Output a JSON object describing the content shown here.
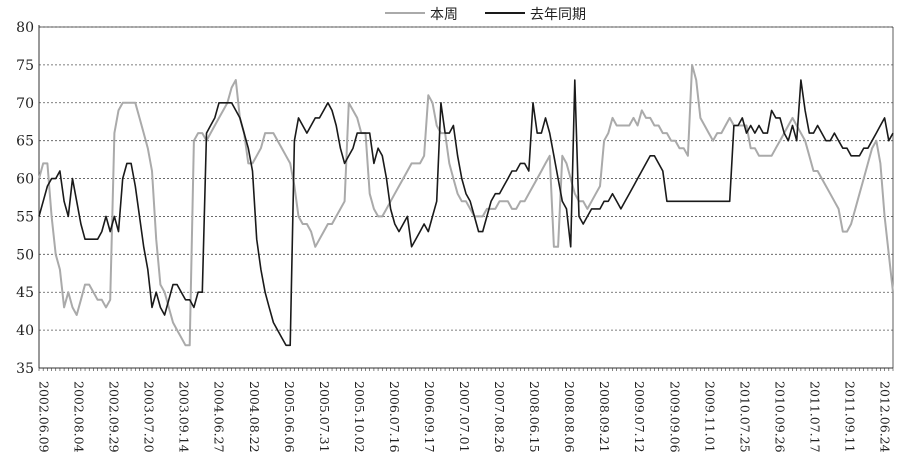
{
  "chart_data": {
    "type": "line",
    "title": "",
    "xlabel": "",
    "ylabel": "",
    "ylim": [
      35,
      80
    ],
    "yticks": [
      35,
      40,
      45,
      50,
      55,
      60,
      65,
      70,
      75,
      80
    ],
    "grid": "horizontal dashed",
    "legend_position": "top-center",
    "x_tick_labels": [
      "2002.06.09",
      "2002.08.04",
      "2002.09.29",
      "2003.07.20",
      "2003.09.14",
      "2004.06.27",
      "2004.08.22",
      "2005.06.06",
      "2005.07.31",
      "2005.10.02",
      "2006.07.16",
      "2006.09.17",
      "2007.07.01",
      "2007.08.26",
      "2008.06.15",
      "2008.08.06",
      "2008.09.21",
      "2009.07.12",
      "2009.09.06",
      "2009.11.01",
      "2010.07.25",
      "2010.09.26",
      "2011.07.17",
      "2011.09.11",
      "2012.06.24"
    ],
    "series": [
      {
        "name": "本周",
        "color": "#aaaaaa",
        "values": [
          60,
          62,
          62,
          55,
          50,
          48,
          43,
          45,
          43,
          42,
          44,
          46,
          46,
          45,
          44,
          44,
          43,
          44,
          66,
          69,
          70,
          70,
          70,
          70,
          68,
          66,
          64,
          61,
          52,
          46,
          45,
          43,
          41,
          40,
          39,
          38,
          38,
          65,
          66,
          66,
          65,
          66,
          67,
          68,
          69,
          70,
          72,
          73,
          68,
          66,
          62,
          62,
          63,
          64,
          66,
          66,
          66,
          65,
          64,
          63,
          62,
          59,
          55,
          54,
          54,
          53,
          51,
          52,
          53,
          54,
          54,
          55,
          56,
          57,
          70,
          69,
          68,
          66,
          66,
          58,
          56,
          55,
          55,
          56,
          57,
          58,
          59,
          60,
          61,
          62,
          62,
          62,
          63,
          71,
          70,
          67,
          66,
          66,
          62,
          60,
          58,
          57,
          57,
          56,
          55,
          55,
          55,
          56,
          56,
          56,
          57,
          57,
          57,
          56,
          56,
          57,
          57,
          58,
          59,
          60,
          61,
          62,
          63,
          51,
          51,
          63,
          62,
          60,
          58,
          57,
          57,
          56,
          57,
          58,
          59,
          65,
          66,
          68,
          67,
          67,
          67,
          67,
          68,
          67,
          69,
          68,
          68,
          67,
          67,
          66,
          66,
          65,
          65,
          64,
          64,
          63,
          75,
          73,
          68,
          67,
          66,
          65,
          66,
          66,
          67,
          68,
          67,
          67,
          67,
          67,
          64,
          64,
          63,
          63,
          63,
          63,
          64,
          65,
          66,
          67,
          68,
          67,
          66,
          65,
          63,
          61,
          61,
          60,
          59,
          58,
          57,
          56,
          53,
          53,
          54,
          56,
          58,
          60,
          62,
          64,
          65,
          62,
          55,
          50,
          45
        ]
      },
      {
        "name": "去年同期",
        "color": "#1a1a1a",
        "values": [
          55,
          57,
          59,
          60,
          60,
          61,
          57,
          55,
          60,
          57,
          54,
          52,
          52,
          52,
          52,
          53,
          55,
          53,
          55,
          53,
          60,
          62,
          62,
          59,
          55,
          51,
          48,
          43,
          45,
          43,
          42,
          44,
          46,
          46,
          45,
          44,
          44,
          43,
          45,
          45,
          66,
          67,
          68,
          70,
          70,
          70,
          70,
          69,
          68,
          66,
          64,
          61,
          52,
          48,
          45,
          43,
          41,
          40,
          39,
          38,
          38,
          65,
          68,
          67,
          66,
          67,
          68,
          68,
          69,
          70,
          69,
          67,
          64,
          62,
          63,
          64,
          66,
          66,
          66,
          66,
          62,
          64,
          63,
          60,
          56,
          54,
          53,
          54,
          55,
          51,
          52,
          53,
          54,
          53,
          55,
          57,
          70,
          66,
          66,
          67,
          63,
          60,
          58,
          57,
          55,
          53,
          53,
          55,
          57,
          58,
          58,
          59,
          60,
          61,
          61,
          62,
          62,
          61,
          70,
          66,
          66,
          68,
          66,
          63,
          60,
          57,
          56,
          51,
          73,
          55,
          54,
          55,
          56,
          56,
          56,
          57,
          57,
          58,
          57,
          56,
          57,
          58,
          59,
          60,
          61,
          62,
          63,
          63,
          62,
          61,
          57,
          57,
          57,
          57,
          57,
          57,
          57,
          57,
          57,
          57,
          57,
          57,
          57,
          57,
          57,
          57,
          67,
          67,
          68,
          66,
          67,
          66,
          67,
          66,
          66,
          69,
          68,
          68,
          66,
          65,
          67,
          65,
          73,
          69,
          66,
          66,
          67,
          66,
          65,
          65,
          66,
          65,
          64,
          64,
          63,
          63,
          63,
          64,
          64,
          65,
          66,
          67,
          68,
          65,
          66
        ]
      }
    ]
  }
}
